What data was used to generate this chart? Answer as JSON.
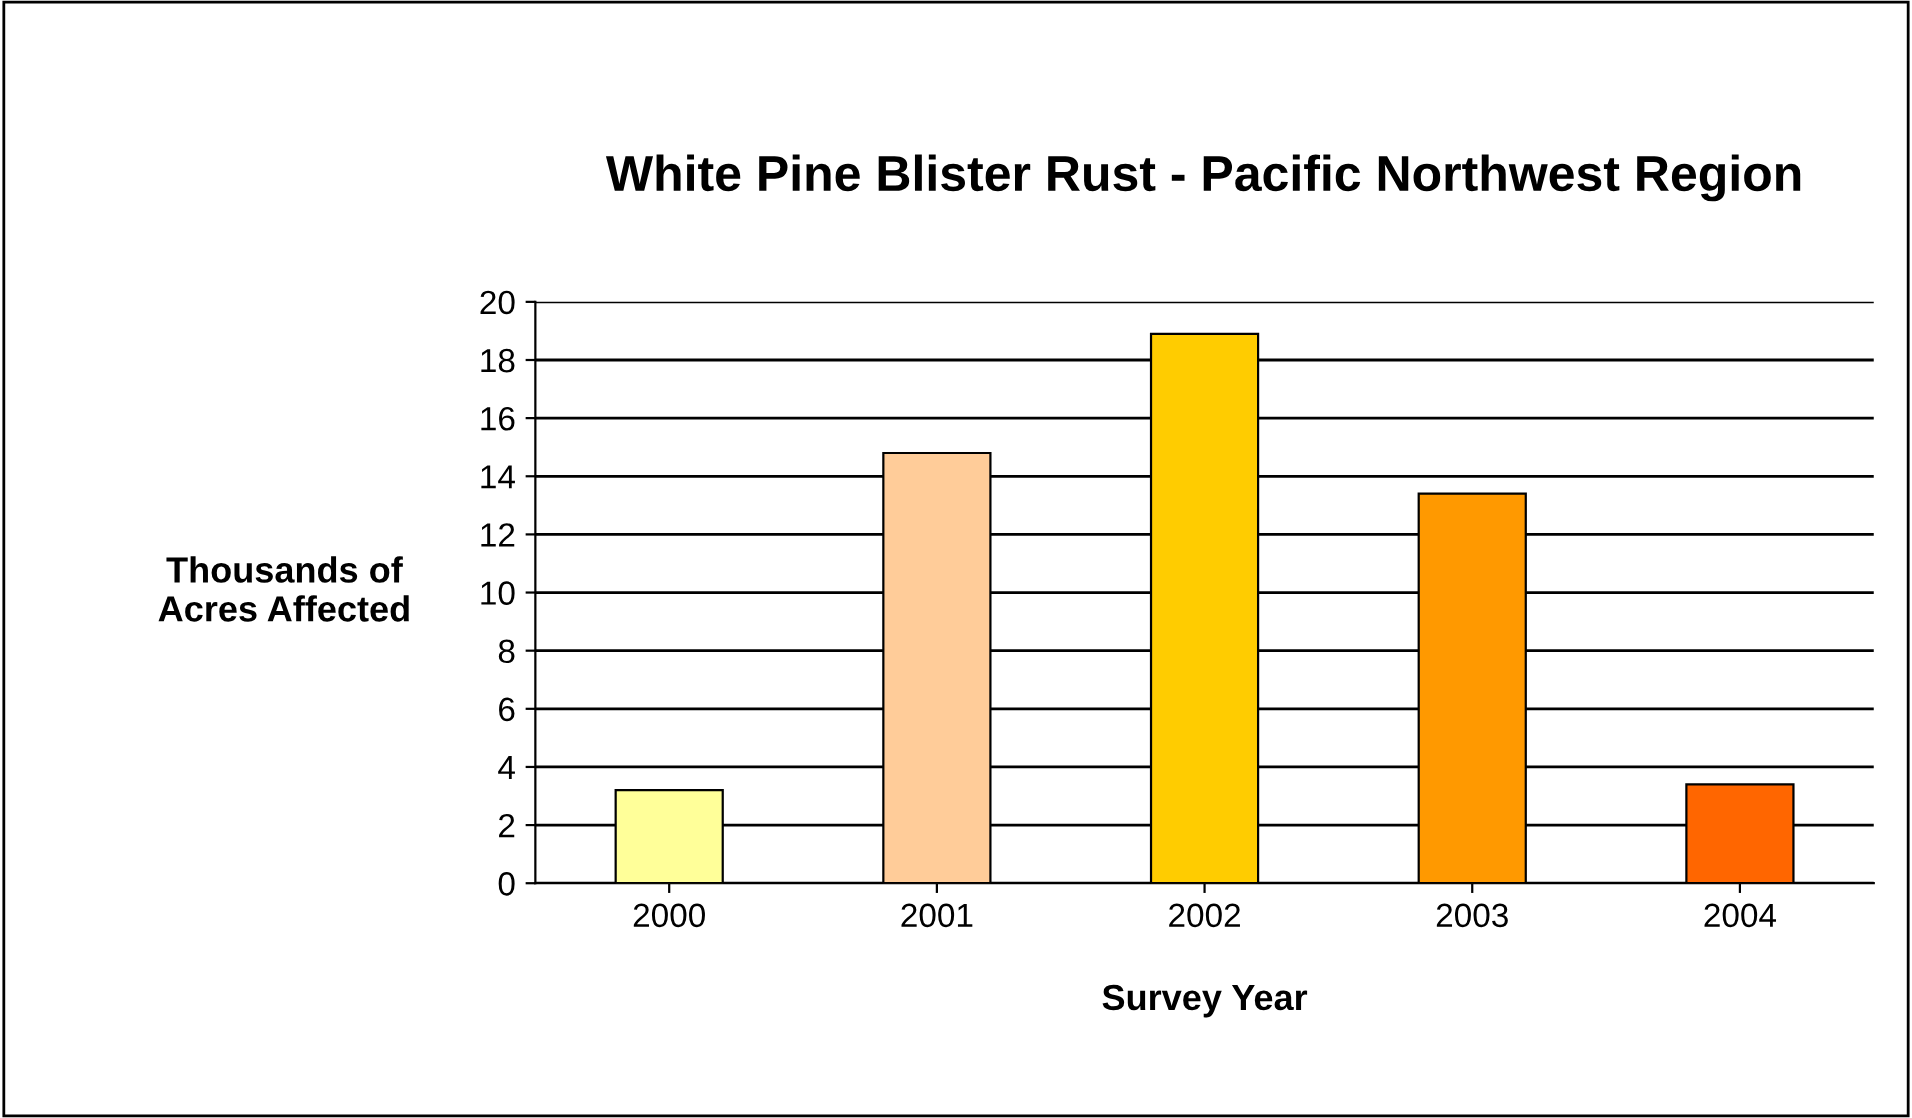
{
  "chart_data": {
    "type": "bar",
    "title": "White Pine Blister Rust - Pacific Northwest Region",
    "xlabel": "Survey Year",
    "ylabel": "Thousands of\nAcres Affected",
    "categories": [
      "2000",
      "2001",
      "2002",
      "2003",
      "2004"
    ],
    "values": [
      3.2,
      14.8,
      18.9,
      13.4,
      3.4
    ],
    "colors": [
      "#ffff99",
      "#ffcc99",
      "#ffcc00",
      "#ff9900",
      "#ff6600"
    ],
    "ylim": [
      0,
      20
    ],
    "yticks": [
      0,
      2,
      4,
      6,
      8,
      10,
      12,
      14,
      16,
      18,
      20
    ],
    "grid": "y"
  }
}
